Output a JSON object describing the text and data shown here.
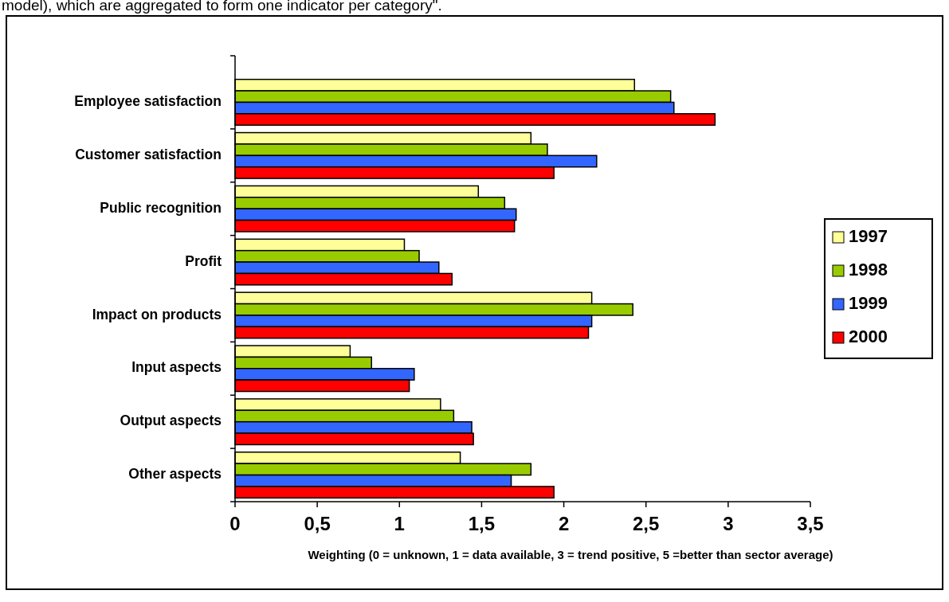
{
  "chart_data": {
    "type": "bar",
    "orientation": "horizontal",
    "xlabel": "Weighting (0 = unknown, 1 = data available, 3 = trend positive, 5 =better than sector average)",
    "annotations": [
      "model), which are aggregated to form one indicator per category\"."
    ],
    "categories": [
      "Employee satisfaction",
      "Customer satisfaction",
      "Public recognition",
      "Profit",
      "Impact on products",
      "Input aspects",
      "Output aspects",
      "Other aspects"
    ],
    "series": [
      {
        "name": "1997",
        "color": "#ffff99",
        "values": [
          2.43,
          1.8,
          1.48,
          1.03,
          2.17,
          0.7,
          1.25,
          1.37
        ]
      },
      {
        "name": "1998",
        "color": "#99cc00",
        "values": [
          2.65,
          1.9,
          1.64,
          1.12,
          2.42,
          0.83,
          1.33,
          1.8
        ]
      },
      {
        "name": "1999",
        "color": "#3366ff",
        "values": [
          2.67,
          2.2,
          1.71,
          1.24,
          2.17,
          1.09,
          1.44,
          1.68
        ]
      },
      {
        "name": "2000",
        "color": "#ff0000",
        "values": [
          2.92,
          1.94,
          1.7,
          1.32,
          2.15,
          1.06,
          1.45,
          1.94
        ]
      }
    ],
    "xlim": [
      0,
      3.5
    ],
    "xticks": [
      0,
      {
        "value": 0.5,
        "label": "0,5"
      },
      1,
      {
        "value": 1.5,
        "label": "1,5"
      },
      2,
      {
        "value": 2.5,
        "label": "2,5"
      },
      3,
      {
        "value": 3.5,
        "label": "3,5"
      }
    ],
    "grid": false,
    "legend": "right"
  }
}
